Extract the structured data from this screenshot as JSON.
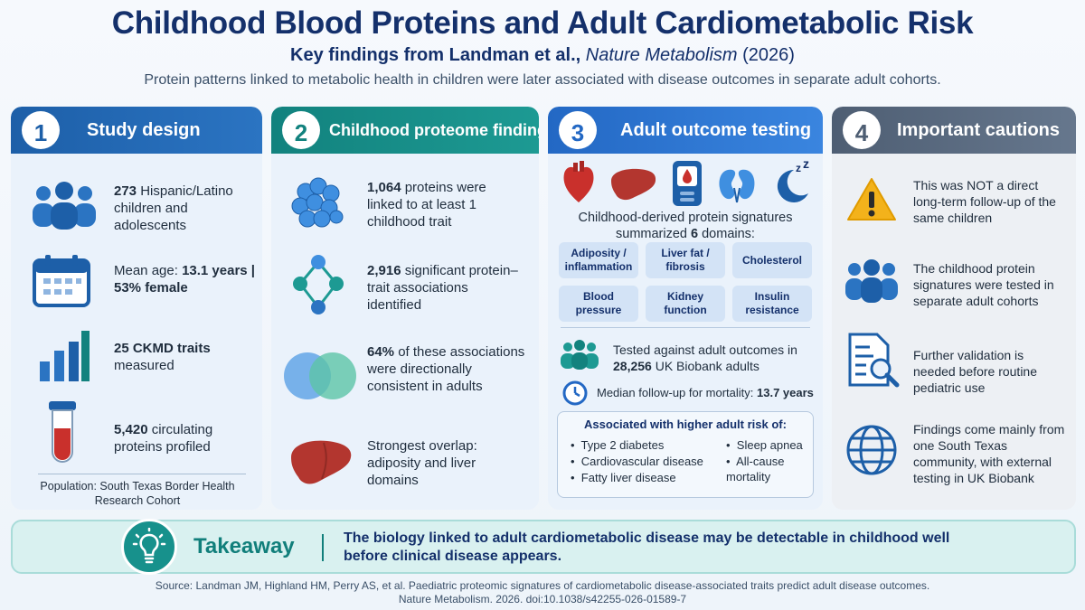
{
  "header": {
    "title": "Childhood Blood Proteins and Adult Cardiometabolic Risk",
    "subtitle_pre": "Key findings from Landman et al., ",
    "subtitle_journal": "Nature Metabolism",
    "subtitle_year": " (2026)",
    "tagline": "Protein patterns linked to metabolic health in children were later associated with disease outcomes in separate adult cohorts."
  },
  "cards": {
    "design": {
      "num": "1",
      "title": "Study design",
      "items": [
        {
          "bold": "273",
          "text": " Hispanic/Latino children and adolescents",
          "icon": "people-icon"
        },
        {
          "pre": "Mean age: ",
          "bold": "13.1 years |",
          "bold2": "53% female",
          "icon": "calendar-icon"
        },
        {
          "bold": "25 CKMD traits",
          "text": "measured",
          "icon": "bar-chart-icon"
        },
        {
          "bold": "5,420",
          "text": " circulating proteins profiled",
          "icon": "blood-tube-icon"
        }
      ],
      "population": "Population: South Texas Border Health Research Cohort"
    },
    "proteome": {
      "num": "2",
      "title": "Childhood proteome findings",
      "items": [
        {
          "bold": "1,064",
          "text": " proteins were linked to at least 1 childhood trait",
          "icon": "protein-cluster-icon"
        },
        {
          "bold": "2,916",
          "text": " significant protein–trait associations identified",
          "icon": "molecule-network-icon"
        },
        {
          "bold": "64%",
          "text": " of these associations were directionally consistent in adults",
          "icon": "venn-icon"
        },
        {
          "text": "Strongest overlap: adiposity and liver domains",
          "icon": "liver-icon"
        }
      ]
    },
    "adult": {
      "num": "3",
      "title": "Adult outcome testing",
      "organs": [
        "heart-icon",
        "liver-icon",
        "glucose-meter-icon",
        "kidneys-icon",
        "sleep-moon-icon"
      ],
      "summary_line1": "Childhood-derived protein signatures",
      "summary_pre": "summarized ",
      "summary_bold": "6",
      "summary_post": " domains:",
      "domains": [
        "Adiposity / inflammation",
        "Liver fat / fibrosis",
        "Cholesterol",
        "Blood pressure",
        "Kidney function",
        "Insulin resistance"
      ],
      "tested_line1": "Tested against adult outcomes in",
      "tested_bold": "28,256",
      "tested_post": " UK Biobank adults",
      "followup_pre": "Median follow-up for mortality: ",
      "followup_bold": "13.7 years",
      "risk_title": "Associated with higher adult risk of:",
      "risks_left": [
        "Type 2 diabetes",
        "Cardiovascular disease",
        "Fatty liver disease"
      ],
      "risks_right": [
        "Sleep apnea",
        "All-cause mortality"
      ]
    },
    "cautions": {
      "num": "4",
      "title": "Important cautions",
      "items": [
        {
          "text": "This was NOT a direct long-term follow-up of the same children",
          "icon": "warning-icon"
        },
        {
          "text": "The childhood protein signatures were tested in separate adult cohorts",
          "icon": "people-icon"
        },
        {
          "text": "Further validation is needed before routine pediatric use",
          "icon": "document-search-icon"
        },
        {
          "text": "Findings come mainly from one South Texas community, with external testing in UK Biobank",
          "icon": "globe-icon"
        }
      ]
    }
  },
  "takeaway": {
    "label": "Takeaway",
    "text": "The biology linked to adult cardiometabolic disease may be detectable in childhood well before clinical disease appears."
  },
  "source": {
    "line1": "Source: Landman JM, Highland HM, Perry AS, et al. Paediatric proteomic signatures of cardiometabolic disease-associated traits predict adult disease outcomes.",
    "line2": "Nature Metabolism. 2026. doi:10.1038/s42255-026-01589-7"
  },
  "colors": {
    "navy": "#14306b",
    "blue": "#1d5fa8",
    "teal": "#12827e",
    "slate": "#4e5e73",
    "red": "#c9302c"
  }
}
